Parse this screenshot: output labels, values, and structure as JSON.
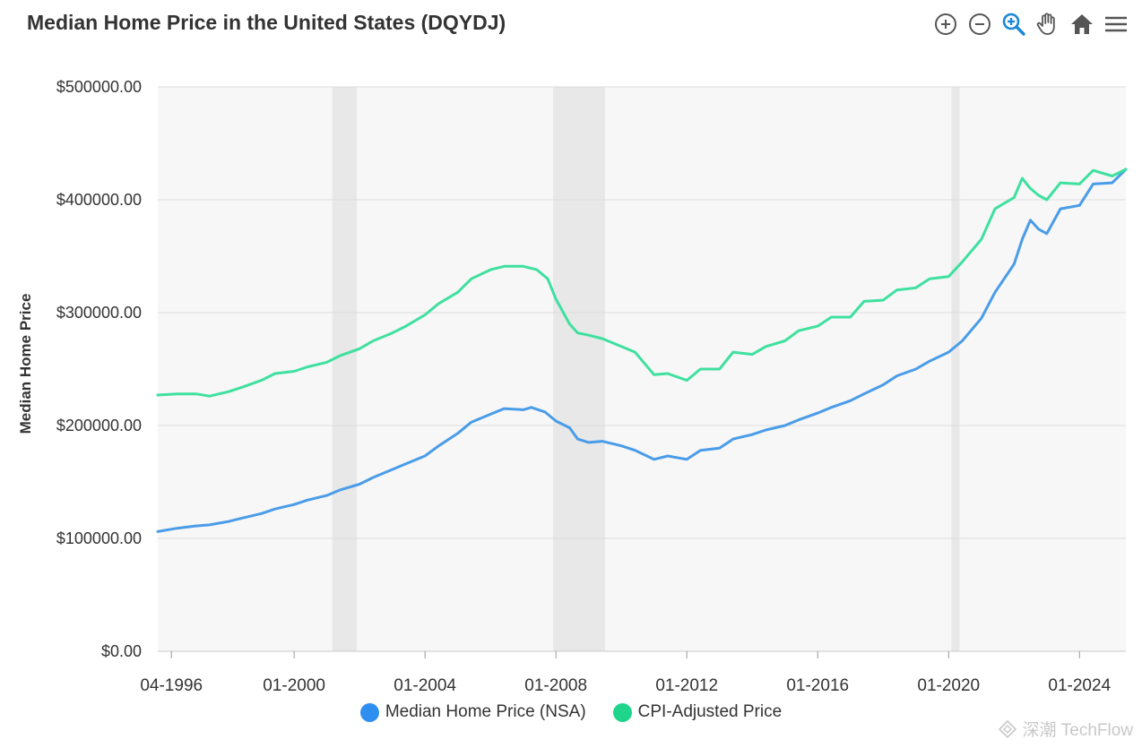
{
  "header": {
    "title": "Median Home Price in the United States (DQYDJ)"
  },
  "toolbar": {
    "tools": [
      {
        "name": "zoom-in-icon"
      },
      {
        "name": "zoom-out-icon"
      },
      {
        "name": "selection-zoom-icon"
      },
      {
        "name": "pan-hand-icon"
      },
      {
        "name": "home-reset-icon"
      },
      {
        "name": "menu-icon"
      }
    ]
  },
  "watermark": {
    "text": "深潮 TechFlow"
  },
  "colors": {
    "median": "#4a9ce8",
    "cpi": "#3fe0a0",
    "recession": "#e8e8e8",
    "plotbg": "#f7f7f7",
    "grid": "#dcdcdc",
    "active_tool": "#1a88d6",
    "tool": "#555555"
  },
  "chart_data": {
    "type": "line",
    "title": "Median Home Price in the United States (DQYDJ)",
    "ylabel": "Median Home Price",
    "xlabel": "",
    "ylim": [
      0,
      500000
    ],
    "xlim": [
      "1995-11",
      "2025-06"
    ],
    "y_ticks": [
      0,
      100000,
      200000,
      300000,
      400000,
      500000
    ],
    "y_tick_labels": [
      "$0.00",
      "$100000.00",
      "$200000.00",
      "$300000.00",
      "$400000.00",
      "$500000.00"
    ],
    "x_ticks": [
      "1996-04",
      "2000-01",
      "2004-01",
      "2008-01",
      "2012-01",
      "2016-01",
      "2020-01",
      "2024-01"
    ],
    "x_tick_labels": [
      "04-1996",
      "01-2000",
      "01-2004",
      "01-2008",
      "01-2012",
      "01-2016",
      "01-2020",
      "01-2024"
    ],
    "recessions": [
      [
        "2001-03",
        "2001-11"
      ],
      [
        "2007-12",
        "2009-06"
      ],
      [
        "2020-02",
        "2020-04"
      ]
    ],
    "grid": true,
    "legend_position": "bottom-center",
    "series": [
      {
        "name": "Median Home Price (NSA)",
        "color": "#4a9ce8",
        "points": [
          [
            "1995-11",
            106000
          ],
          [
            "1996-06",
            109000
          ],
          [
            "1997-01",
            111000
          ],
          [
            "1997-06",
            112000
          ],
          [
            "1998-01",
            115000
          ],
          [
            "1998-06",
            118000
          ],
          [
            "1999-01",
            122000
          ],
          [
            "1999-06",
            126000
          ],
          [
            "2000-01",
            130000
          ],
          [
            "2000-06",
            134000
          ],
          [
            "2001-01",
            138000
          ],
          [
            "2001-06",
            143000
          ],
          [
            "2002-01",
            148000
          ],
          [
            "2002-06",
            154000
          ],
          [
            "2003-01",
            161000
          ],
          [
            "2003-06",
            166000
          ],
          [
            "2004-01",
            173000
          ],
          [
            "2004-06",
            182000
          ],
          [
            "2005-01",
            193000
          ],
          [
            "2005-06",
            203000
          ],
          [
            "2006-01",
            210000
          ],
          [
            "2006-06",
            215000
          ],
          [
            "2007-01",
            214000
          ],
          [
            "2007-04",
            216000
          ],
          [
            "2007-09",
            212000
          ],
          [
            "2008-01",
            204000
          ],
          [
            "2008-06",
            198000
          ],
          [
            "2008-09",
            188000
          ],
          [
            "2009-01",
            185000
          ],
          [
            "2009-06",
            186000
          ],
          [
            "2010-01",
            182000
          ],
          [
            "2010-06",
            178000
          ],
          [
            "2011-01",
            170000
          ],
          [
            "2011-06",
            173000
          ],
          [
            "2012-01",
            170000
          ],
          [
            "2012-06",
            178000
          ],
          [
            "2013-01",
            180000
          ],
          [
            "2013-06",
            188000
          ],
          [
            "2014-01",
            192000
          ],
          [
            "2014-06",
            196000
          ],
          [
            "2015-01",
            200000
          ],
          [
            "2015-06",
            205000
          ],
          [
            "2016-01",
            211000
          ],
          [
            "2016-06",
            216000
          ],
          [
            "2017-01",
            222000
          ],
          [
            "2017-06",
            228000
          ],
          [
            "2018-01",
            236000
          ],
          [
            "2018-06",
            244000
          ],
          [
            "2019-01",
            250000
          ],
          [
            "2019-06",
            257000
          ],
          [
            "2020-01",
            265000
          ],
          [
            "2020-06",
            275000
          ],
          [
            "2021-01",
            295000
          ],
          [
            "2021-06",
            318000
          ],
          [
            "2022-01",
            343000
          ],
          [
            "2022-04",
            365000
          ],
          [
            "2022-07",
            382000
          ],
          [
            "2022-10",
            374000
          ],
          [
            "2023-01",
            370000
          ],
          [
            "2023-06",
            392000
          ],
          [
            "2024-01",
            395000
          ],
          [
            "2024-06",
            414000
          ],
          [
            "2025-01",
            415000
          ],
          [
            "2025-06",
            427000
          ]
        ]
      },
      {
        "name": "CPI-Adjusted Price",
        "color": "#3fe0a0",
        "points": [
          [
            "1995-11",
            227000
          ],
          [
            "1996-06",
            228000
          ],
          [
            "1997-01",
            228000
          ],
          [
            "1997-06",
            226000
          ],
          [
            "1998-01",
            230000
          ],
          [
            "1998-06",
            234000
          ],
          [
            "1999-01",
            240000
          ],
          [
            "1999-06",
            246000
          ],
          [
            "2000-01",
            248000
          ],
          [
            "2000-06",
            252000
          ],
          [
            "2001-01",
            256000
          ],
          [
            "2001-06",
            262000
          ],
          [
            "2002-01",
            268000
          ],
          [
            "2002-06",
            275000
          ],
          [
            "2003-01",
            282000
          ],
          [
            "2003-06",
            288000
          ],
          [
            "2004-01",
            298000
          ],
          [
            "2004-06",
            308000
          ],
          [
            "2005-01",
            318000
          ],
          [
            "2005-06",
            330000
          ],
          [
            "2006-01",
            338000
          ],
          [
            "2006-06",
            341000
          ],
          [
            "2007-01",
            341000
          ],
          [
            "2007-06",
            338000
          ],
          [
            "2007-10",
            330000
          ],
          [
            "2008-01",
            312000
          ],
          [
            "2008-06",
            290000
          ],
          [
            "2008-09",
            282000
          ],
          [
            "2009-01",
            280000
          ],
          [
            "2009-06",
            277000
          ],
          [
            "2010-01",
            270000
          ],
          [
            "2010-06",
            265000
          ],
          [
            "2011-01",
            245000
          ],
          [
            "2011-06",
            246000
          ],
          [
            "2012-01",
            240000
          ],
          [
            "2012-06",
            250000
          ],
          [
            "2013-01",
            250000
          ],
          [
            "2013-06",
            265000
          ],
          [
            "2014-01",
            263000
          ],
          [
            "2014-06",
            270000
          ],
          [
            "2015-01",
            275000
          ],
          [
            "2015-06",
            284000
          ],
          [
            "2016-01",
            288000
          ],
          [
            "2016-06",
            296000
          ],
          [
            "2017-01",
            296000
          ],
          [
            "2017-06",
            310000
          ],
          [
            "2018-01",
            311000
          ],
          [
            "2018-06",
            320000
          ],
          [
            "2019-01",
            322000
          ],
          [
            "2019-06",
            330000
          ],
          [
            "2020-01",
            332000
          ],
          [
            "2020-06",
            345000
          ],
          [
            "2021-01",
            365000
          ],
          [
            "2021-06",
            392000
          ],
          [
            "2022-01",
            402000
          ],
          [
            "2022-04",
            419000
          ],
          [
            "2022-07",
            410000
          ],
          [
            "2022-10",
            404000
          ],
          [
            "2023-01",
            400000
          ],
          [
            "2023-06",
            415000
          ],
          [
            "2024-01",
            414000
          ],
          [
            "2024-06",
            426000
          ],
          [
            "2025-01",
            421000
          ],
          [
            "2025-06",
            427000
          ]
        ]
      }
    ]
  }
}
